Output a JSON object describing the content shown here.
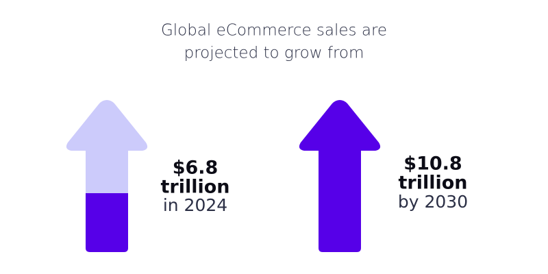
{
  "header": {
    "title_lines": [
      "Global eCommerce sales are",
      "projected to grow from"
    ]
  },
  "items": [
    {
      "amount": "$6.8",
      "unit": "trillion",
      "period": "in 2024"
    },
    {
      "amount": "$10.8",
      "unit": "trillion",
      "period": "by 2030"
    }
  ]
}
